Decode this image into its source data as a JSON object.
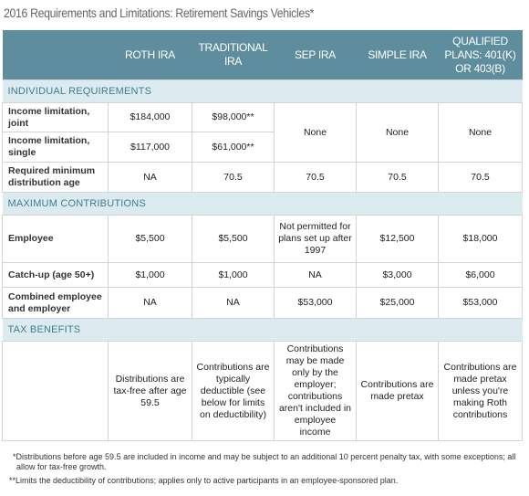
{
  "title": "2016 Requirements and Limitations: Retirement Savings Vehicles*",
  "table": {
    "columns": [
      "ROTH IRA",
      "TRADITIONAL IRA",
      "SEP IRA",
      "SIMPLE IRA",
      "QUALIFIED PLANS: 401(K) OR 403(B)"
    ],
    "sections": [
      {
        "title": "INDIVIDUAL REQUIREMENTS",
        "rows": [
          {
            "label": "Income limitation, joint",
            "cells": [
              "$184,000",
              "$98,000**",
              "None",
              "None",
              "None"
            ]
          },
          {
            "label": "Income limitation, single",
            "cells": [
              "$117,000",
              "$61,000**"
            ]
          },
          {
            "label": "Required minimum distribution age",
            "cells": [
              "NA",
              "70.5",
              "70.5",
              "70.5",
              "70.5"
            ]
          }
        ]
      },
      {
        "title": "MAXIMUM CONTRIBUTIONS",
        "rows": [
          {
            "label": "Employee",
            "cells": [
              "$5,500",
              "$5,500",
              "Not permitted for plans set up after 1997",
              "$12,500",
              "$18,000"
            ]
          },
          {
            "label": "Catch-up (age 50+)",
            "cells": [
              "$1,000",
              "$1,000",
              "NA",
              "$3,000",
              "$6,000"
            ]
          },
          {
            "label": "Combined employee and employer",
            "cells": [
              "NA",
              "NA",
              "$53,000",
              "$25,000",
              "$53,000"
            ]
          }
        ]
      },
      {
        "title": "TAX BENEFITS",
        "rows": [
          {
            "cells": [
              "Distributions are tax-free after age 59.5",
              "Contributions are typically deductible (see below for limits on deductibility)",
              "Contributions may be made only by the employer; contributions aren't included in employee income",
              "Contributions are made pretax",
              "Contributions are made pretax unless you're making Roth contributions"
            ]
          }
        ]
      }
    ]
  },
  "footnotes": [
    "*Distributions before age 59.5 are included in income and may be subject to an additional 10 percent penalty tax, with some exceptions; all allow for tax-free growth.",
    "**Limits the deductibility of contributions; applies only to active participants in an employee-sponsored plan."
  ]
}
